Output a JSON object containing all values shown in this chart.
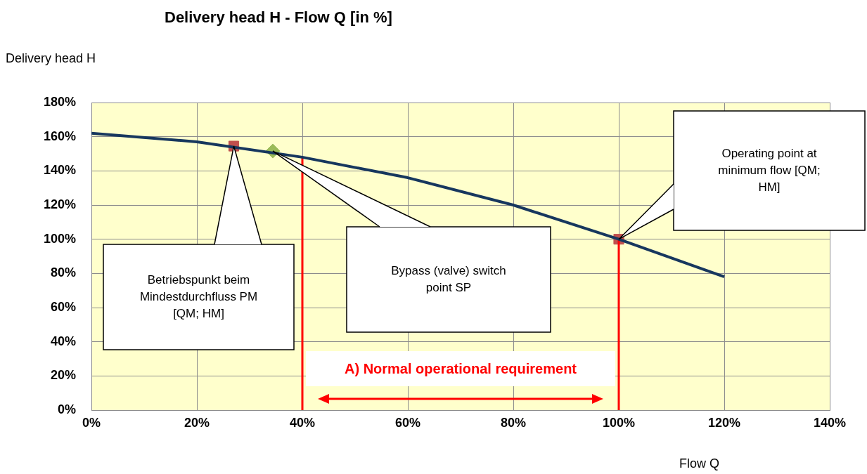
{
  "chart_data": {
    "type": "line",
    "title": "Delivery head H - Flow Q [in %]",
    "xlabel": "Flow Q",
    "ylabel": "Delivery head H",
    "xlim": [
      0,
      140
    ],
    "ylim": [
      0,
      180
    ],
    "xticks": [
      {
        "value": 0,
        "label": "0%"
      },
      {
        "value": 20,
        "label": "20%"
      },
      {
        "value": 40,
        "label": "40%"
      },
      {
        "value": 60,
        "label": "60%"
      },
      {
        "value": 80,
        "label": "80%"
      },
      {
        "value": 100,
        "label": "100%"
      },
      {
        "value": 120,
        "label": "120%"
      },
      {
        "value": 140,
        "label": "140%"
      }
    ],
    "yticks": [
      {
        "value": 0,
        "label": "0%"
      },
      {
        "value": 20,
        "label": "20%"
      },
      {
        "value": 40,
        "label": "40%"
      },
      {
        "value": 60,
        "label": "60%"
      },
      {
        "value": 80,
        "label": "80%"
      },
      {
        "value": 100,
        "label": "100%"
      },
      {
        "value": 120,
        "label": "120%"
      },
      {
        "value": 140,
        "label": "140%"
      },
      {
        "value": 160,
        "label": "160%"
      },
      {
        "value": 180,
        "label": "180%"
      }
    ],
    "grid": true,
    "series": [
      {
        "type": "line",
        "color": "#17375e",
        "x": [
          0,
          20,
          40,
          60,
          80,
          100,
          120
        ],
        "values": [
          162,
          157,
          148,
          136,
          120,
          100,
          78
        ]
      },
      {
        "type": "line",
        "color": "#ff0000",
        "x": [
          40,
          40
        ],
        "values": [
          0,
          148
        ]
      },
      {
        "type": "line",
        "color": "#ff0000",
        "x": [
          100,
          100
        ],
        "values": [
          0,
          100
        ]
      },
      {
        "type": "scatter",
        "color": "#c0504d",
        "marker": "square",
        "x": [
          27,
          100
        ],
        "values": [
          154.5,
          100
        ]
      },
      {
        "type": "scatter",
        "color": "#9bbb59",
        "marker": "diamond",
        "x": [
          34.4
        ],
        "values": [
          151.6
        ]
      }
    ],
    "annotations": [
      "Betriebspunkt beim Mindestdurchfluss PM [QM; HM]",
      "Bypass (valve) switch point SP",
      "Operating point at minimum flow [QM; HM]",
      "A) Normal operational requirement"
    ]
  }
}
